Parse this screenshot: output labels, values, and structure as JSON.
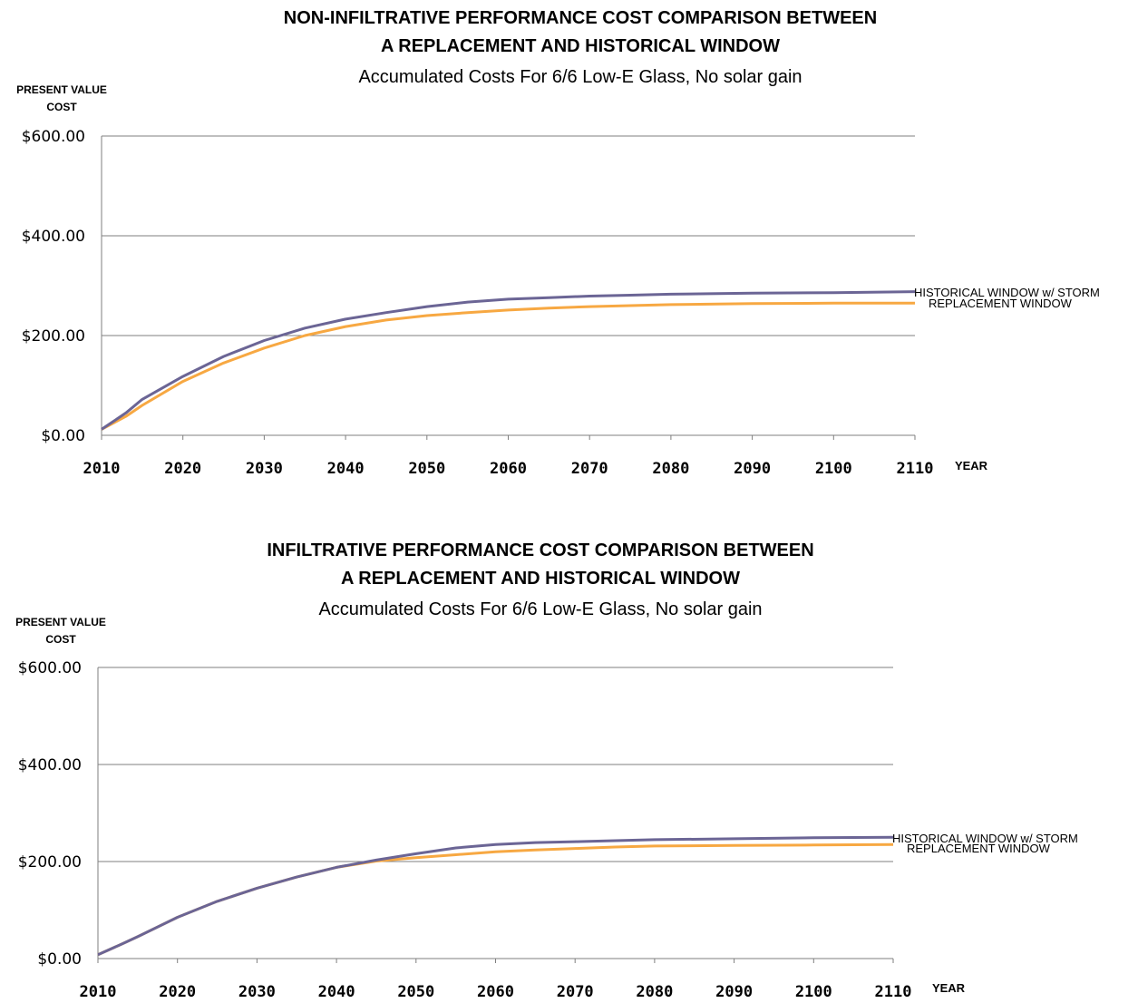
{
  "chart_data": [
    {
      "type": "line",
      "title_lines": [
        "NON-INFILTRATIVE PERFORMANCE COST COMPARISON BETWEEN",
        "A REPLACEMENT AND HISTORICAL WINDOW",
        "Accumulated Costs   For 6/6 Low-E Glass, No solar gain"
      ],
      "ylabel_lines": [
        "PRESENT VALUE",
        "COST"
      ],
      "xlabel": "YEAR",
      "xlim": [
        2010,
        2110
      ],
      "ylim": [
        0,
        600
      ],
      "x_ticks": [
        "2010",
        "2020",
        "2030",
        "2040",
        "2050",
        "2060",
        "2070",
        "2080",
        "2090",
        "2100",
        "2110"
      ],
      "y_ticks": [
        "$0.00",
        "$200.00",
        "$400.00",
        "$600.00"
      ],
      "y_tick_values": [
        0,
        200,
        400,
        600
      ],
      "x": [
        2010,
        2013,
        2015,
        2020,
        2025,
        2030,
        2035,
        2040,
        2045,
        2050,
        2055,
        2060,
        2065,
        2070,
        2075,
        2080,
        2090,
        2100,
        2110
      ],
      "series": [
        {
          "name": "HISTORICAL WINDOW w/ STORM",
          "color": "#6b6595",
          "values": [
            12,
            45,
            72,
            118,
            158,
            190,
            215,
            233,
            246,
            258,
            267,
            273,
            276,
            279,
            281,
            283,
            285,
            286,
            288
          ]
        },
        {
          "name": "REPLACEMENT WINDOW",
          "color": "#f7a842",
          "values": [
            12,
            38,
            60,
            108,
            145,
            175,
            200,
            218,
            231,
            240,
            246,
            251,
            255,
            258,
            260,
            262,
            264,
            265,
            265
          ]
        }
      ],
      "grid": true
    },
    {
      "type": "line",
      "title_lines": [
        "INFILTRATIVE PERFORMANCE COST COMPARISON BETWEEN",
        "A REPLACEMENT AND HISTORICAL WINDOW",
        "Accumulated Costs   For 6/6 Low-E Glass, No solar gain"
      ],
      "ylabel_lines": [
        "PRESENT VALUE",
        "COST"
      ],
      "xlabel": "YEAR",
      "xlim": [
        2010,
        2110
      ],
      "ylim": [
        0,
        600
      ],
      "x_ticks": [
        "2010",
        "2020",
        "2030",
        "2040",
        "2050",
        "2060",
        "2070",
        "2080",
        "2090",
        "2100",
        "2110"
      ],
      "y_ticks": [
        "$0.00",
        "$200.00",
        "$400.00",
        "$600.00"
      ],
      "y_tick_values": [
        0,
        200,
        400,
        600
      ],
      "x": [
        2010,
        2013,
        2015,
        2020,
        2025,
        2030,
        2035,
        2040,
        2045,
        2050,
        2055,
        2060,
        2065,
        2070,
        2075,
        2080,
        2090,
        2100,
        2110
      ],
      "series": [
        {
          "name": "HISTORICAL WINDOW w/ STORM",
          "color": "#6b6595",
          "values": [
            8,
            30,
            45,
            85,
            118,
            145,
            168,
            188,
            203,
            216,
            228,
            235,
            239,
            241,
            243,
            245,
            247,
            249,
            250
          ]
        },
        {
          "name": "REPLACEMENT WINDOW",
          "color": "#f7a842",
          "values": [
            8,
            30,
            45,
            85,
            118,
            145,
            168,
            188,
            201,
            208,
            214,
            220,
            224,
            227,
            230,
            232,
            233,
            234,
            235
          ]
        }
      ],
      "grid": true
    }
  ]
}
